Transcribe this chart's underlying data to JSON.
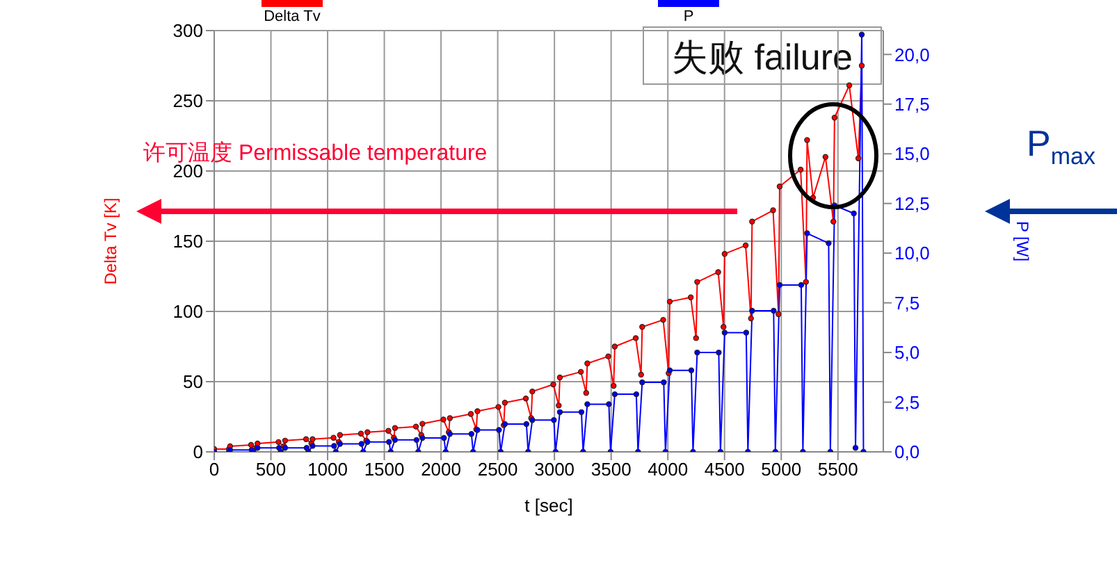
{
  "chart_data": {
    "type": "line",
    "xlabel": "t [sec]",
    "ylabel": "Delta Tv [K]",
    "y2label": "P [W]",
    "annotations": [
      "许可温度 Permissable temperature",
      "失败 failure",
      "P$_{max}$"
    ],
    "xlim": [
      0,
      5900
    ],
    "xticks": [
      0,
      500,
      1000,
      1500,
      2000,
      2500,
      3000,
      3500,
      4000,
      4500,
      5000,
      5500
    ],
    "ylim": [
      0,
      300
    ],
    "yticks": [
      0,
      50,
      100,
      150,
      200,
      250,
      300
    ],
    "y2lim": [
      0,
      21.2
    ],
    "y2ticks": [
      {
        "value": 0,
        "label": "0,0"
      },
      {
        "value": 2.5,
        "label": "2,5"
      },
      {
        "value": 5,
        "label": "5,0"
      },
      {
        "value": 7.5,
        "label": "7,5"
      },
      {
        "value": 10,
        "label": "10,0"
      },
      {
        "value": 12.5,
        "label": "12,5"
      },
      {
        "value": 15,
        "label": "15,0"
      },
      {
        "value": 17.5,
        "label": "17,5"
      },
      {
        "value": 20,
        "label": "20,0"
      }
    ],
    "grid": true,
    "legend": "top",
    "marker": "circle",
    "line_style": "solid",
    "series": [
      {
        "name": "Delta Tv",
        "color": "#ff0000",
        "x": [
          0,
          130,
          140,
          325,
          372,
          382,
          567,
          615,
          625,
          810,
          857,
          867,
          1052,
          1099,
          1109,
          1294,
          1341,
          1351,
          1536,
          1584,
          1594,
          1779,
          1826,
          1836,
          2021,
          2068,
          2078,
          2263,
          2311,
          2321,
          2506,
          2553,
          2563,
          2748,
          2795,
          2805,
          2990,
          3038,
          3048,
          3233,
          3280,
          3290,
          3475,
          3522,
          3532,
          3717,
          3764,
          3774,
          3959,
          4007,
          4017,
          4202,
          4249,
          4259,
          4444,
          4491,
          4501,
          4686,
          4733,
          4743,
          4928,
          4976,
          4986,
          5171,
          5218,
          5228,
          5280,
          5390,
          5460,
          5470,
          5600,
          5680,
          5710
        ],
        "values": [
          2,
          2,
          4,
          5,
          3,
          6,
          7,
          4,
          8,
          9,
          6,
          9,
          10,
          7,
          12,
          13,
          8,
          14,
          15,
          10,
          17,
          18,
          12,
          20,
          23,
          14,
          24,
          27,
          16,
          29,
          32,
          19,
          35,
          38,
          24,
          43,
          48,
          33,
          53,
          57,
          42,
          63,
          68,
          47,
          75,
          81,
          55,
          89,
          94,
          56,
          107,
          110,
          81,
          121,
          128,
          89,
          141,
          147,
          95,
          164,
          172,
          98,
          189,
          201,
          121,
          222,
          181,
          210,
          164,
          238,
          261,
          209,
          275
        ]
      },
      {
        "name": "P",
        "color": "#0000ff",
        "axis": "y2",
        "x": [
          0,
          130,
          140,
          330,
          345,
          382,
          572,
          587,
          625,
          815,
          830,
          867,
          1057,
          1072,
          1109,
          1299,
          1314,
          1351,
          1541,
          1556,
          1594,
          1784,
          1799,
          1836,
          2026,
          2041,
          2078,
          2268,
          2283,
          2321,
          2511,
          2526,
          2563,
          2753,
          2768,
          2805,
          2995,
          3010,
          3048,
          3238,
          3253,
          3290,
          3480,
          3495,
          3532,
          3722,
          3737,
          3774,
          3964,
          3979,
          4017,
          4207,
          4222,
          4259,
          4449,
          4464,
          4501,
          4691,
          4706,
          4743,
          4933,
          4948,
          4986,
          5176,
          5191,
          5228,
          5418,
          5433,
          5470,
          5640,
          5655,
          5710,
          5725
        ],
        "values": [
          0,
          0,
          0.1,
          0.1,
          0,
          0.2,
          0.2,
          0,
          0.2,
          0.2,
          0,
          0.3,
          0.3,
          0,
          0.4,
          0.4,
          0,
          0.5,
          0.5,
          0,
          0.6,
          0.6,
          0,
          0.7,
          0.7,
          0,
          0.9,
          0.9,
          0,
          1.1,
          1.1,
          0,
          1.4,
          1.4,
          0,
          1.6,
          1.6,
          0,
          2,
          2,
          0,
          2.4,
          2.4,
          0,
          2.9,
          2.9,
          0,
          3.5,
          3.5,
          0,
          4.1,
          4.1,
          0,
          5,
          5,
          0,
          6,
          6,
          0,
          7.1,
          7.1,
          0,
          8.4,
          8.4,
          0,
          11,
          10.5,
          0,
          12.4,
          12,
          0.2,
          21,
          0
        ]
      }
    ]
  }
}
